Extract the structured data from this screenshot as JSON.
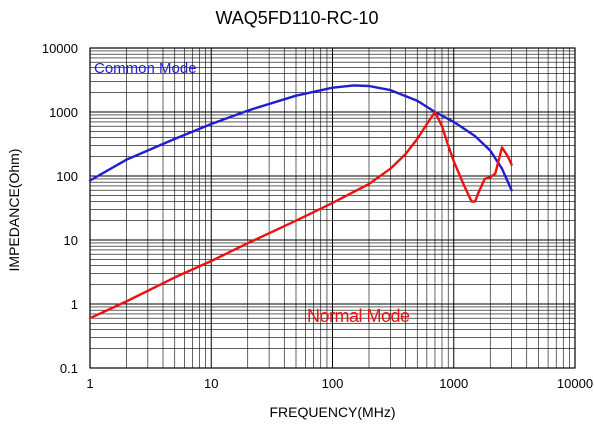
{
  "chart_data": {
    "type": "line",
    "title": "WAQ5FD110-RC-10",
    "xlabel": "FREQUENCY(MHz)",
    "ylabel": "IMPEDANCE(Ohm)",
    "xscale": "log",
    "yscale": "log",
    "xlim": [
      1,
      10000
    ],
    "ylim": [
      0.1,
      10000
    ],
    "x_ticks": [
      "1",
      "10",
      "100",
      "1000",
      "10000"
    ],
    "y_ticks": [
      "0.1",
      "1",
      "10",
      "100",
      "1000",
      "10000"
    ],
    "grid": true,
    "colors": {
      "common": "#1f1fd0",
      "normal": "#ee1111",
      "grid": "#000000"
    },
    "series": [
      {
        "name": "Common Mode",
        "color": "#1f1fd0",
        "x": [
          1,
          2,
          5,
          10,
          20,
          50,
          100,
          150,
          200,
          300,
          500,
          700,
          1000,
          1500,
          2000,
          2500,
          3000
        ],
        "y": [
          85,
          180,
          380,
          650,
          1050,
          1800,
          2400,
          2600,
          2550,
          2200,
          1500,
          1000,
          700,
          420,
          250,
          130,
          60
        ]
      },
      {
        "name": "Normal Mode",
        "color": "#ee1111",
        "x": [
          1,
          2,
          5,
          10,
          20,
          50,
          100,
          200,
          300,
          400,
          500,
          600,
          700,
          800,
          900,
          1000,
          1200,
          1400,
          1500,
          1600,
          1800,
          2000,
          2200,
          2500,
          2800,
          3000
        ],
        "y": [
          0.6,
          1.1,
          2.6,
          4.7,
          8.9,
          20,
          38,
          75,
          130,
          220,
          380,
          650,
          1000,
          600,
          300,
          170,
          75,
          40,
          40,
          55,
          90,
          95,
          110,
          280,
          200,
          150
        ]
      }
    ],
    "annotations": [
      {
        "text": "Common Mode",
        "series": "Common Mode"
      },
      {
        "text": "Normal Mode",
        "series": "Normal Mode"
      }
    ]
  }
}
